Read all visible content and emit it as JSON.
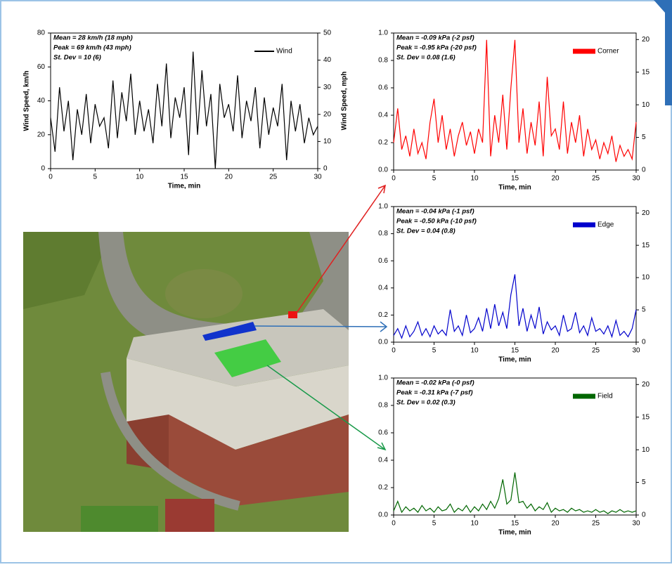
{
  "chart_data": [
    {
      "type": "line",
      "annotations": [
        "Mean = 28 km/h (18 mph)",
        "Peak = 69 km/h (43 mph)",
        "St. Dev = 10 (6)"
      ],
      "xlabel": "Time, min",
      "ylabel": "Wind Speed, km/h",
      "y2label": "Wind Speed, mph",
      "legend": "upper right",
      "x": [
        0,
        0.5,
        1,
        1.5,
        2,
        2.5,
        3,
        3.5,
        4,
        4.5,
        5,
        5.5,
        6,
        6.5,
        7,
        7.5,
        8,
        8.5,
        9,
        9.5,
        10,
        10.5,
        11,
        11.5,
        12,
        12.5,
        13,
        13.5,
        14,
        14.5,
        15,
        15.5,
        16,
        16.5,
        17,
        17.5,
        18,
        18.5,
        19,
        19.5,
        20,
        20.5,
        21,
        21.5,
        22,
        22.5,
        23,
        23.5,
        24,
        24.5,
        25,
        25.5,
        26,
        26.5,
        27,
        27.5,
        28,
        28.5,
        29,
        29.5,
        30
      ],
      "series": [
        {
          "name": "Wind",
          "color": "#000000",
          "values": [
            30,
            10,
            48,
            22,
            40,
            5,
            35,
            20,
            44,
            15,
            38,
            25,
            30,
            12,
            52,
            18,
            45,
            28,
            56,
            20,
            40,
            22,
            35,
            15,
            50,
            25,
            62,
            18,
            42,
            30,
            48,
            8,
            69,
            20,
            58,
            25,
            44,
            0,
            50,
            30,
            38,
            22,
            55,
            18,
            40,
            28,
            48,
            12,
            42,
            20,
            36,
            25,
            50,
            5,
            40,
            22,
            38,
            15,
            30,
            20,
            25
          ]
        }
      ],
      "xlim": [
        0,
        30
      ],
      "xticks": [
        0,
        5,
        10,
        15,
        20,
        25,
        30
      ],
      "ylim": [
        0,
        80
      ],
      "yticks": [
        0,
        20,
        40,
        60,
        80
      ],
      "y2lim": [
        0,
        50
      ],
      "y2ticks": [
        0,
        10,
        20,
        30,
        40,
        50
      ]
    },
    {
      "type": "line",
      "annotations": [
        "Mean = -0.09 kPa (-2 psf)",
        "Peak = -0.95 kPa (-20 psf)",
        "St. Dev = 0.08 (1.6)"
      ],
      "xlabel": "Time, min",
      "legend": "upper right",
      "x": [
        0,
        0.5,
        1,
        1.5,
        2,
        2.5,
        3,
        3.5,
        4,
        4.5,
        5,
        5.5,
        6,
        6.5,
        7,
        7.5,
        8,
        8.5,
        9,
        9.5,
        10,
        10.5,
        11,
        11.5,
        12,
        12.5,
        13,
        13.5,
        14,
        14.5,
        15,
        15.5,
        16,
        16.5,
        17,
        17.5,
        18,
        18.5,
        19,
        19.5,
        20,
        20.5,
        21,
        21.5,
        22,
        22.5,
        23,
        23.5,
        24,
        24.5,
        25,
        25.5,
        26,
        26.5,
        27,
        27.5,
        28,
        28.5,
        29,
        29.5,
        30
      ],
      "series": [
        {
          "name": "Corner",
          "color": "#ff0000",
          "values": [
            0.2,
            0.45,
            0.15,
            0.25,
            0.1,
            0.3,
            0.12,
            0.2,
            0.08,
            0.35,
            0.52,
            0.2,
            0.4,
            0.15,
            0.3,
            0.1,
            0.25,
            0.35,
            0.18,
            0.28,
            0.12,
            0.3,
            0.2,
            0.95,
            0.1,
            0.4,
            0.2,
            0.55,
            0.15,
            0.6,
            0.95,
            0.2,
            0.45,
            0.12,
            0.35,
            0.18,
            0.5,
            0.1,
            0.68,
            0.25,
            0.3,
            0.15,
            0.5,
            0.12,
            0.35,
            0.2,
            0.4,
            0.1,
            0.3,
            0.15,
            0.22,
            0.08,
            0.2,
            0.12,
            0.25,
            0.06,
            0.18,
            0.1,
            0.15,
            0.08,
            0.35
          ]
        }
      ],
      "xlim": [
        0,
        30
      ],
      "xticks": [
        0,
        5,
        10,
        15,
        20,
        25,
        30
      ],
      "ylim": [
        0,
        1
      ],
      "yticks": [
        {
          "value": 0,
          "label": "0.0"
        },
        0.2,
        0.4,
        0.6,
        0.8,
        {
          "value": 1,
          "label": "1.0"
        }
      ],
      "y2lim": [
        0,
        21
      ],
      "y2ticks": [
        0,
        5,
        10,
        15,
        20
      ]
    },
    {
      "type": "line",
      "annotations": [
        "Mean = -0.04 kPa (-1 psf)",
        "Peak = -0.50 kPa (-10 psf)",
        "St. Dev = 0.04 (0.8)"
      ],
      "xlabel": "Time, min",
      "legend": "upper right",
      "x": [
        0,
        0.5,
        1,
        1.5,
        2,
        2.5,
        3,
        3.5,
        4,
        4.5,
        5,
        5.5,
        6,
        6.5,
        7,
        7.5,
        8,
        8.5,
        9,
        9.5,
        10,
        10.5,
        11,
        11.5,
        12,
        12.5,
        13,
        13.5,
        14,
        14.5,
        15,
        15.5,
        16,
        16.5,
        17,
        17.5,
        18,
        18.5,
        19,
        19.5,
        20,
        20.5,
        21,
        21.5,
        22,
        22.5,
        23,
        23.5,
        24,
        24.5,
        25,
        25.5,
        26,
        26.5,
        27,
        27.5,
        28,
        28.5,
        29,
        29.5,
        30
      ],
      "series": [
        {
          "name": "Edge",
          "color": "#0000cc",
          "values": [
            0.05,
            0.1,
            0.03,
            0.12,
            0.04,
            0.08,
            0.15,
            0.05,
            0.1,
            0.04,
            0.12,
            0.06,
            0.09,
            0.05,
            0.24,
            0.08,
            0.12,
            0.05,
            0.2,
            0.07,
            0.1,
            0.18,
            0.08,
            0.25,
            0.1,
            0.28,
            0.12,
            0.22,
            0.1,
            0.35,
            0.5,
            0.12,
            0.25,
            0.08,
            0.2,
            0.1,
            0.26,
            0.06,
            0.15,
            0.09,
            0.12,
            0.05,
            0.2,
            0.08,
            0.1,
            0.22,
            0.07,
            0.12,
            0.05,
            0.18,
            0.08,
            0.1,
            0.06,
            0.12,
            0.04,
            0.16,
            0.05,
            0.08,
            0.04,
            0.1,
            0.24
          ]
        }
      ],
      "xlim": [
        0,
        30
      ],
      "xticks": [
        0,
        5,
        10,
        15,
        20,
        25,
        30
      ],
      "ylim": [
        0,
        1
      ],
      "yticks": [
        {
          "value": 0,
          "label": "0.0"
        },
        0.2,
        0.4,
        0.6,
        0.8,
        {
          "value": 1,
          "label": "1.0"
        }
      ],
      "y2lim": [
        0,
        21
      ],
      "y2ticks": [
        0,
        5,
        10,
        15,
        20
      ]
    },
    {
      "type": "line",
      "annotations": [
        "Mean = -0.02 kPa (-0 psf)",
        "Peak = -0.31 kPa (-7 psf)",
        "St. Dev = 0.02 (0.3)"
      ],
      "xlabel": "Time, min",
      "legend": "upper right",
      "x": [
        0,
        0.5,
        1,
        1.5,
        2,
        2.5,
        3,
        3.5,
        4,
        4.5,
        5,
        5.5,
        6,
        6.5,
        7,
        7.5,
        8,
        8.5,
        9,
        9.5,
        10,
        10.5,
        11,
        11.5,
        12,
        12.5,
        13,
        13.5,
        14,
        14.5,
        15,
        15.5,
        16,
        16.5,
        17,
        17.5,
        18,
        18.5,
        19,
        19.5,
        20,
        20.5,
        21,
        21.5,
        22,
        22.5,
        23,
        23.5,
        24,
        24.5,
        25,
        25.5,
        26,
        26.5,
        27,
        27.5,
        28,
        28.5,
        29,
        29.5,
        30
      ],
      "series": [
        {
          "name": "Field",
          "color": "#006600",
          "values": [
            0.03,
            0.1,
            0.02,
            0.06,
            0.03,
            0.05,
            0.02,
            0.07,
            0.03,
            0.05,
            0.02,
            0.06,
            0.03,
            0.04,
            0.08,
            0.02,
            0.05,
            0.03,
            0.07,
            0.02,
            0.06,
            0.03,
            0.08,
            0.04,
            0.1,
            0.05,
            0.12,
            0.26,
            0.08,
            0.11,
            0.31,
            0.09,
            0.1,
            0.05,
            0.08,
            0.03,
            0.06,
            0.04,
            0.09,
            0.02,
            0.05,
            0.03,
            0.04,
            0.02,
            0.05,
            0.03,
            0.04,
            0.02,
            0.03,
            0.02,
            0.04,
            0.02,
            0.03,
            0.01,
            0.03,
            0.02,
            0.04,
            0.02,
            0.03,
            0.02,
            0.03
          ]
        }
      ],
      "xlim": [
        0,
        30
      ],
      "xticks": [
        0,
        5,
        10,
        15,
        20,
        25,
        30
      ],
      "ylim": [
        0,
        1
      ],
      "yticks": [
        {
          "value": 0,
          "label": "0.0"
        },
        0.2,
        0.4,
        0.6,
        0.8,
        {
          "value": 1,
          "label": "1.0"
        }
      ],
      "y2lim": [
        0,
        21
      ],
      "y2ticks": [
        0,
        5,
        10,
        15,
        20
      ]
    }
  ]
}
